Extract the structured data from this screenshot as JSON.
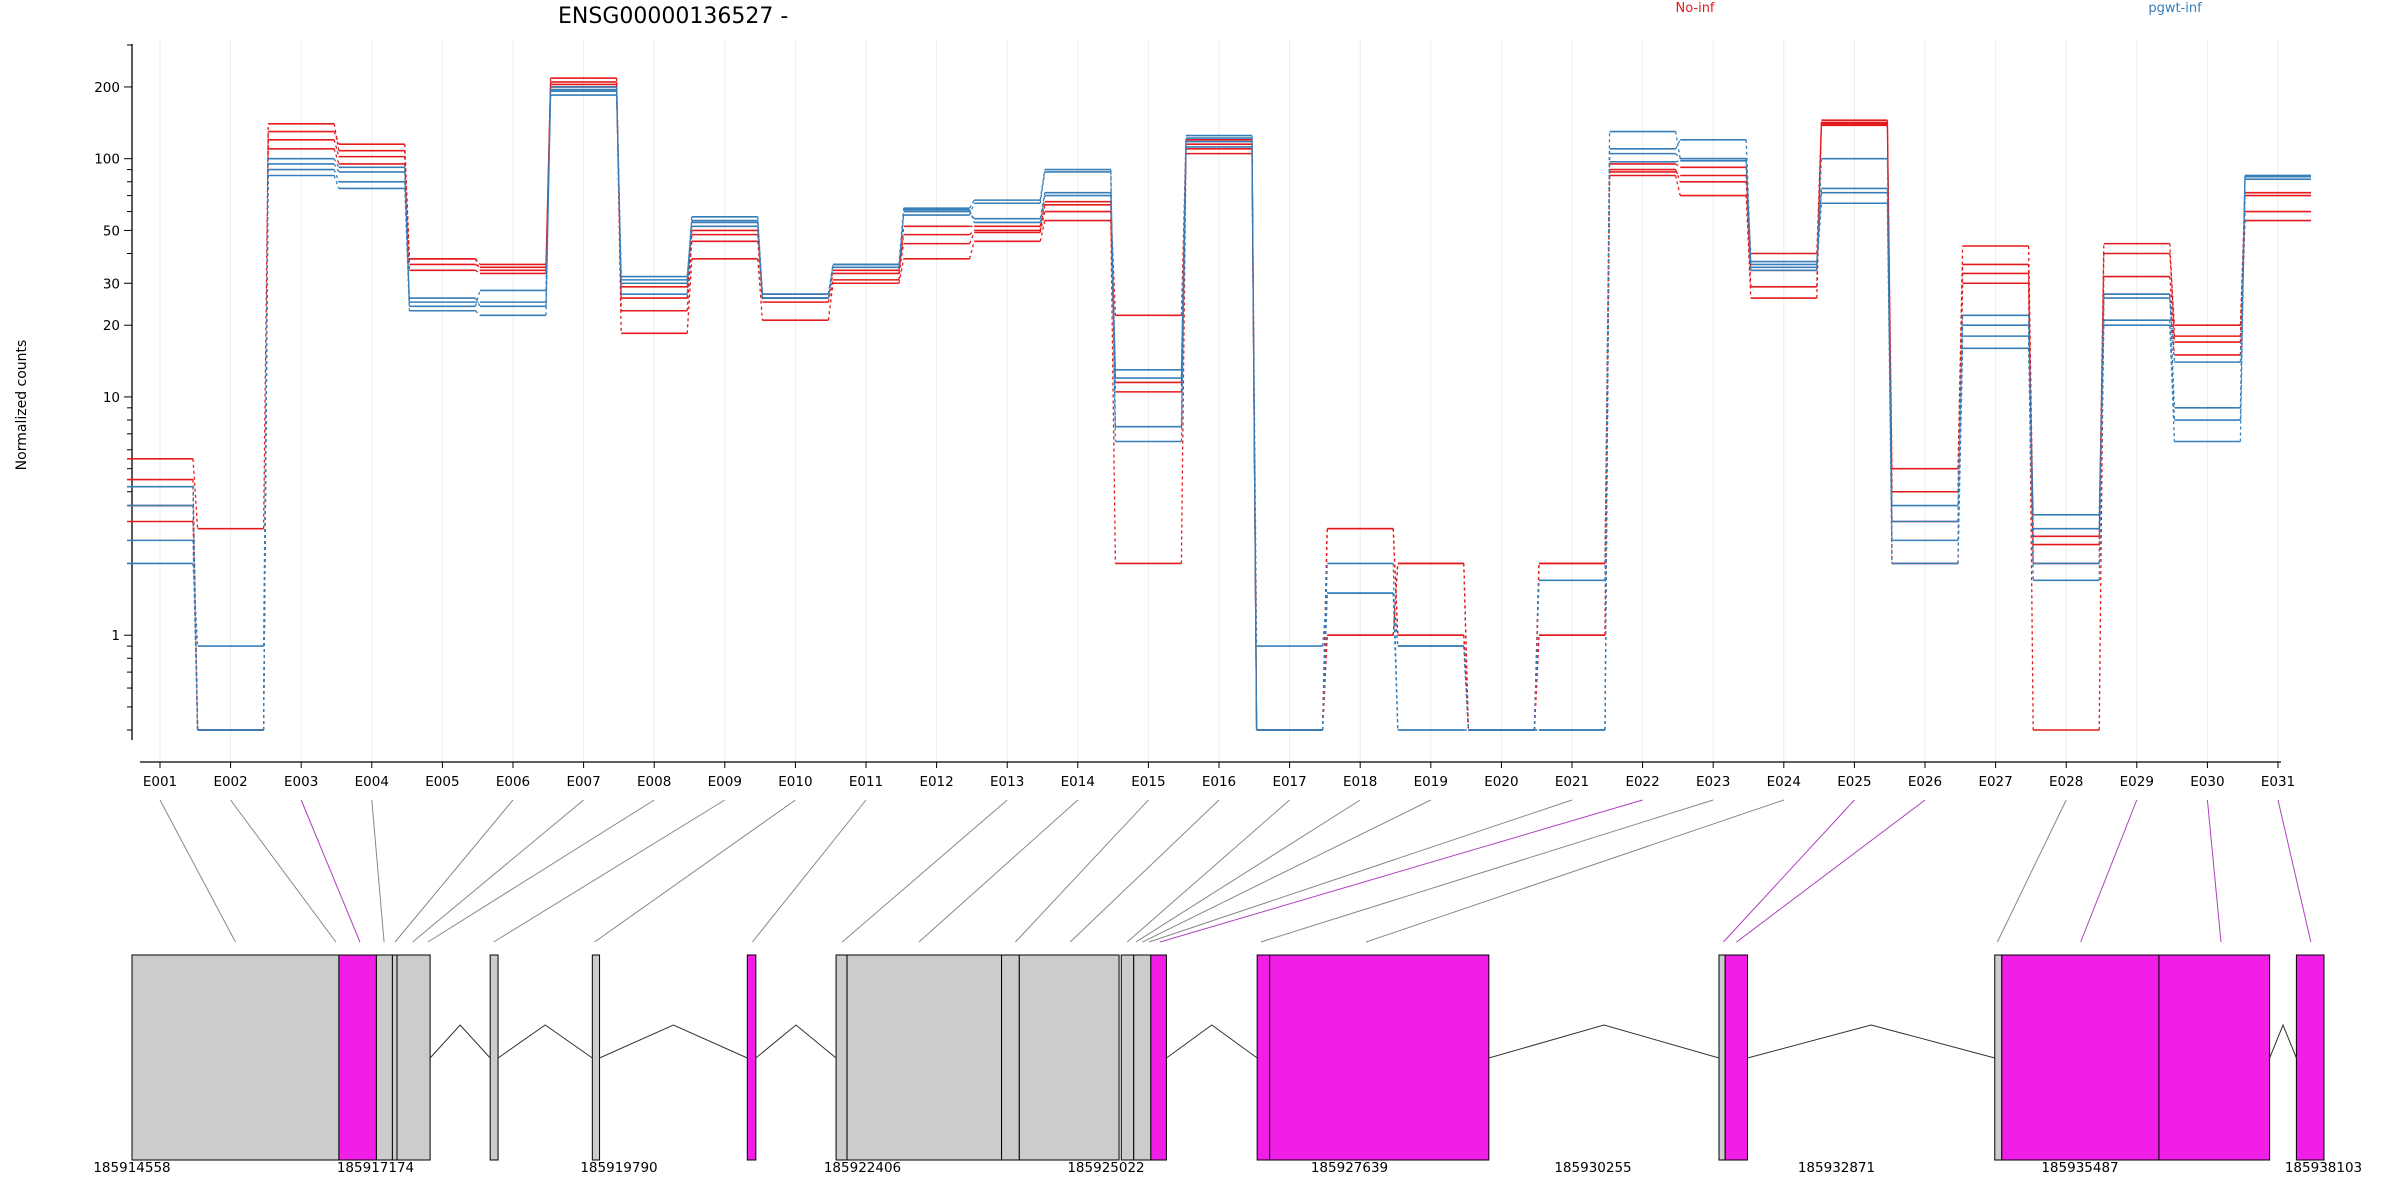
{
  "chart_data": {
    "type": "line",
    "title": "ENSG00000136527 -",
    "ylabel": "Normalized counts",
    "xlabel": "",
    "yscale": "log",
    "ylim": [
      0.4,
      300
    ],
    "yticks": [
      1,
      10,
      20,
      30,
      50,
      100,
      200
    ],
    "grid": "vertical",
    "legend": {
      "placement": "top",
      "entries": [
        {
          "label": "No-inf",
          "color": "#E41A1C"
        },
        {
          "label": "pgwt-inf",
          "color": "#377EB8"
        }
      ]
    },
    "categories": [
      "E001",
      "E002",
      "E003",
      "E004",
      "E005",
      "E006",
      "E007",
      "E008",
      "E009",
      "E010",
      "E011",
      "E012",
      "E013",
      "E014",
      "E015",
      "E016",
      "E017",
      "E018",
      "E019",
      "E020",
      "E021",
      "E022",
      "E023",
      "E024",
      "E025",
      "E026",
      "E027",
      "E028",
      "E029",
      "E030",
      "E031"
    ],
    "series": [
      {
        "group": "No-inf",
        "color": "#E41A1C",
        "values": [
          5.5,
          2.8,
          130,
          115,
          38,
          36,
          210,
          18.5,
          38,
          21,
          30,
          38,
          45,
          55,
          2,
          105,
          0.4,
          1,
          2,
          0.4,
          1,
          85,
          70,
          26,
          140,
          2,
          30,
          0.4,
          27,
          15,
          55
        ]
      },
      {
        "group": "No-inf",
        "color": "#E41A1C",
        "values": [
          4.5,
          0.4,
          110,
          95,
          34,
          33,
          200,
          23,
          45,
          26,
          33,
          44,
          49,
          60,
          10.5,
          110,
          0.4,
          2.8,
          1,
          0.4,
          2,
          90,
          80,
          29,
          145,
          3,
          33,
          2,
          32,
          17,
          60
        ]
      },
      {
        "group": "No-inf",
        "color": "#E41A1C",
        "values": [
          3.5,
          0.4,
          140,
          108,
          36,
          35,
          218,
          26,
          48,
          27,
          34,
          48,
          50,
          66,
          11.5,
          115,
          0.4,
          2.8,
          1,
          0.4,
          1,
          95,
          92,
          34,
          138,
          4,
          36,
          2.4,
          40,
          20,
          72
        ]
      },
      {
        "group": "No-inf",
        "color": "#E41A1C",
        "values": [
          3,
          0.4,
          120,
          102,
          38,
          34,
          205,
          29,
          50,
          25,
          31,
          52,
          52,
          64,
          22,
          120,
          0.4,
          1,
          2,
          0.4,
          2,
          88,
          85,
          40,
          142,
          5,
          43,
          2.6,
          44,
          18,
          70
        ]
      },
      {
        "group": "pgwt-inf",
        "color": "#377EB8",
        "values": [
          2,
          0.9,
          85,
          75,
          23,
          22,
          185,
          30,
          55,
          27,
          36,
          62,
          67,
          90,
          6.5,
          118,
          0.9,
          1.5,
          0.9,
          0.4,
          1.7,
          130,
          100,
          35,
          65,
          2,
          16,
          1.7,
          20,
          6.5,
          85
        ]
      },
      {
        "group": "pgwt-inf",
        "color": "#377EB8",
        "values": [
          2.5,
          0.4,
          90,
          80,
          26,
          24,
          192,
          31,
          57,
          26,
          35,
          58,
          65,
          88,
          7.5,
          112,
          0.4,
          2,
          0.4,
          0.4,
          0.4,
          110,
          120,
          36,
          75,
          2.5,
          18,
          2,
          21,
          8,
          82
        ]
      },
      {
        "group": "pgwt-inf",
        "color": "#377EB8",
        "values": [
          3.5,
          0.4,
          95,
          88,
          25,
          25,
          195,
          32,
          54,
          27,
          36,
          60,
          56,
          72,
          12,
          122,
          0.4,
          1.5,
          0.4,
          0.4,
          0.4,
          97,
          98,
          37,
          72,
          3,
          20,
          2.8,
          26,
          14,
          84
        ]
      },
      {
        "group": "pgwt-inf",
        "color": "#377EB8",
        "values": [
          4.2,
          0.4,
          100,
          92,
          24,
          28,
          200,
          27,
          52,
          26,
          36,
          61,
          54,
          70,
          13,
          125,
          0.4,
          1.5,
          0.9,
          0.4,
          0.4,
          105,
          100,
          34,
          100,
          3.5,
          22,
          3.2,
          27,
          9,
          85
        ]
      }
    ]
  },
  "gene_model": {
    "coordinates": [
      "185914558",
      "185917174",
      "185919790",
      "185922406",
      "185925022",
      "185927639",
      "185930255",
      "185932871",
      "185935487",
      "185938103"
    ],
    "highlight_color": "#F01EE6",
    "exon_color": "#CCCCCC"
  }
}
